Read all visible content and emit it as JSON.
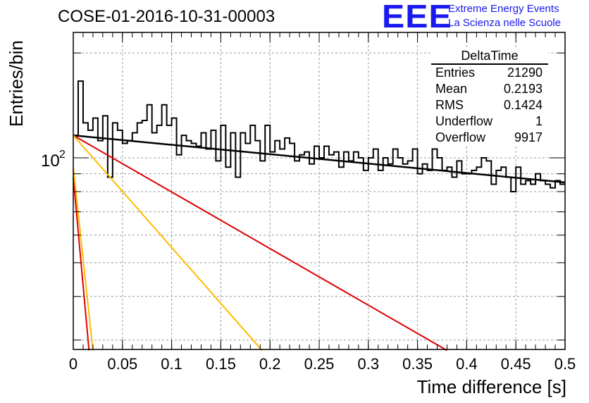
{
  "header": {
    "title": "COSE-01-2016-10-31-00003",
    "logo_text": "EEE",
    "logo_line1": "Extreme Energy Events",
    "logo_line2": "La Scienza nelle Scuole"
  },
  "stats": {
    "title": "DeltaTime",
    "rows": [
      {
        "label": "Entries",
        "value": "21290"
      },
      {
        "label": "Mean",
        "value": "0.2193"
      },
      {
        "label": "RMS",
        "value": "0.1424"
      },
      {
        "label": "Underflow",
        "value": "1"
      },
      {
        "label": "Overflow",
        "value": "9917"
      }
    ]
  },
  "colors": {
    "histogram": "#000000",
    "fit_total": "#000000",
    "component_red": "#dd0000",
    "component_orange": "#ffbb00",
    "grid": "#9a9a9a"
  },
  "chart_data": {
    "type": "histogram",
    "xlabel": "Time difference [s]",
    "ylabel": "Entries/bin",
    "xlim": [
      0,
      0.5
    ],
    "ylim_log10": [
      1.45,
      2.36
    ],
    "log_y": true,
    "grid": true,
    "x_ticks": [
      "0",
      "0.05",
      "0.1",
      "0.15",
      "0.2",
      "0.25",
      "0.3",
      "0.35",
      "0.4",
      "0.45",
      "0.5"
    ],
    "y_tick_label": {
      "base": "10",
      "exponent": "2",
      "value": 100
    },
    "bin_width": 0.005,
    "bin_values": [
      116,
      166,
      126,
      120,
      130,
      112,
      132,
      88,
      126,
      120,
      110,
      112,
      118,
      126,
      128,
      142,
      118,
      124,
      142,
      124,
      130,
      102,
      116,
      112,
      110,
      108,
      118,
      106,
      120,
      98,
      124,
      94,
      118,
      88,
      118,
      110,
      124,
      112,
      98,
      124,
      104,
      112,
      106,
      114,
      110,
      98,
      102,
      104,
      96,
      108,
      100,
      108,
      102,
      104,
      94,
      104,
      98,
      104,
      100,
      92,
      100,
      106,
      92,
      100,
      96,
      106,
      100,
      96,
      98,
      106,
      90,
      96,
      92,
      106,
      100,
      92,
      94,
      88,
      98,
      90,
      90,
      92,
      94,
      100,
      98,
      84,
      92,
      94,
      88,
      80,
      94,
      84,
      86,
      84,
      90,
      86,
      84,
      82,
      86,
      84
    ],
    "fit_lines": [
      {
        "name": "total",
        "color": "#000000",
        "x": [
          0,
          0.5
        ],
        "y": [
          116,
          85
        ]
      },
      {
        "name": "slow_red",
        "color": "#dd0000",
        "x": [
          0,
          0.38
        ],
        "y": [
          116,
          28
        ]
      },
      {
        "name": "slow_orange",
        "color": "#ffbb00",
        "x": [
          0,
          0.192
        ],
        "y": [
          116,
          28
        ]
      },
      {
        "name": "fast_red",
        "color": "#dd0000",
        "x": [
          0,
          0.016
        ],
        "y": [
          88,
          28
        ]
      },
      {
        "name": "fast_orange",
        "color": "#ffbb00",
        "x": [
          0,
          0.02
        ],
        "y": [
          94,
          28
        ]
      }
    ]
  }
}
